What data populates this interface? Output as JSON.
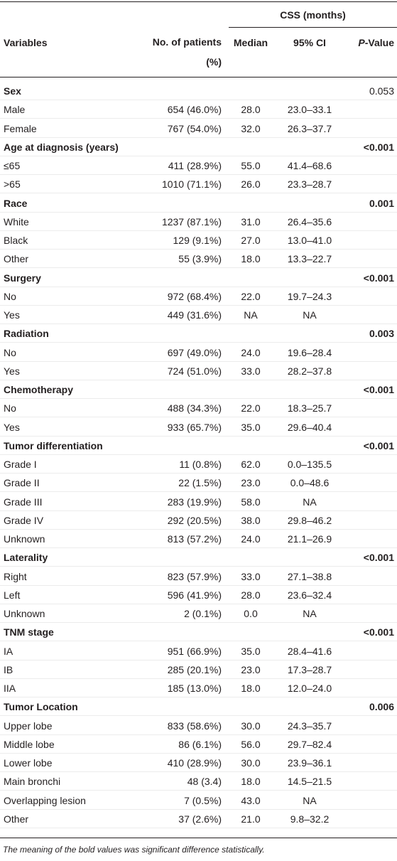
{
  "header": {
    "group_label": "CSS (months)",
    "columns": [
      "Variables",
      "No. of patients (%)",
      "Median",
      "95% CI",
      {
        "italic": "P",
        "rest": "-Value"
      }
    ]
  },
  "table": {
    "rows": [
      {
        "group": "Sex",
        "p": "0.053",
        "bold": false
      },
      [
        "Male",
        "654 (46.0%)",
        "28.0",
        "23.0–33.1"
      ],
      [
        "Female",
        "767 (54.0%)",
        "32.0",
        "26.3–37.7"
      ],
      {
        "group": "Age at diagnosis (years)",
        "p": "<0.001",
        "bold": true
      },
      [
        "≤65",
        "411 (28.9%)",
        "55.0",
        "41.4–68.6"
      ],
      [
        ">65",
        "1010 (71.1%)",
        "26.0",
        "23.3–28.7"
      ],
      {
        "group": "Race",
        "p": "0.001",
        "bold": true
      },
      [
        "White",
        "1237 (87.1%)",
        "31.0",
        "26.4–35.6"
      ],
      [
        "Black",
        "129 (9.1%)",
        "27.0",
        "13.0–41.0"
      ],
      [
        "Other",
        "55 (3.9%)",
        "18.0",
        "13.3–22.7"
      ],
      {
        "group": "Surgery",
        "p": "<0.001",
        "bold": true
      },
      [
        "No",
        "972 (68.4%)",
        "22.0",
        "19.7–24.3"
      ],
      [
        "Yes",
        "449 (31.6%)",
        "NA",
        "NA"
      ],
      {
        "group": "Radiation",
        "p": "0.003",
        "bold": true
      },
      [
        "No",
        "697 (49.0%)",
        "24.0",
        "19.6–28.4"
      ],
      [
        "Yes",
        "724 (51.0%)",
        "33.0",
        "28.2–37.8"
      ],
      {
        "group": "Chemotherapy",
        "p": "<0.001",
        "bold": true
      },
      [
        "No",
        "488 (34.3%)",
        "22.0",
        "18.3–25.7"
      ],
      [
        "Yes",
        "933 (65.7%)",
        "35.0",
        "29.6–40.4"
      ],
      {
        "group": "Tumor differentiation",
        "p": "<0.001",
        "bold": true
      },
      [
        "Grade I",
        "11 (0.8%)",
        "62.0",
        "0.0–135.5"
      ],
      [
        "Grade II",
        "22 (1.5%)",
        "23.0",
        "0.0–48.6"
      ],
      [
        "Grade III",
        "283 (19.9%)",
        "58.0",
        "NA"
      ],
      [
        "Grade IV",
        "292 (20.5%)",
        "38.0",
        "29.8–46.2"
      ],
      [
        "Unknown",
        "813 (57.2%)",
        "24.0",
        "21.1–26.9"
      ],
      {
        "group": "Laterality",
        "p": "<0.001",
        "bold": true
      },
      [
        "Right",
        "823 (57.9%)",
        "33.0",
        "27.1–38.8"
      ],
      [
        "Left",
        "596 (41.9%)",
        "28.0",
        "23.6–32.4"
      ],
      [
        "Unknown",
        "2 (0.1%)",
        "0.0",
        "NA"
      ],
      {
        "group": "TNM stage",
        "p": "<0.001",
        "bold": true
      },
      [
        "IA",
        "951 (66.9%)",
        "35.0",
        "28.4–41.6"
      ],
      [
        "IB",
        "285 (20.1%)",
        "23.0",
        "17.3–28.7"
      ],
      [
        "IIA",
        "185 (13.0%)",
        "18.0",
        "12.0–24.0"
      ],
      {
        "group": "Tumor Location",
        "p": "0.006",
        "bold": true
      },
      [
        "Upper lobe",
        "833 (58.6%)",
        "30.0",
        "24.3–35.7"
      ],
      [
        "Middle lobe",
        "86 (6.1%)",
        "56.0",
        "29.7–82.4"
      ],
      [
        "Lower lobe",
        "410 (28.9%)",
        "30.0",
        "23.9–36.1"
      ],
      [
        "Main bronchi",
        "48 (3.4)",
        "18.0",
        "14.5–21.5"
      ],
      [
        "Overlapping lesion",
        "7 (0.5%)",
        "43.0",
        "NA"
      ],
      [
        "Other",
        "37 (2.6%)",
        "21.0",
        "9.8–32.2"
      ]
    ]
  },
  "footnote": "The meaning of the bold values was significant difference statistically."
}
